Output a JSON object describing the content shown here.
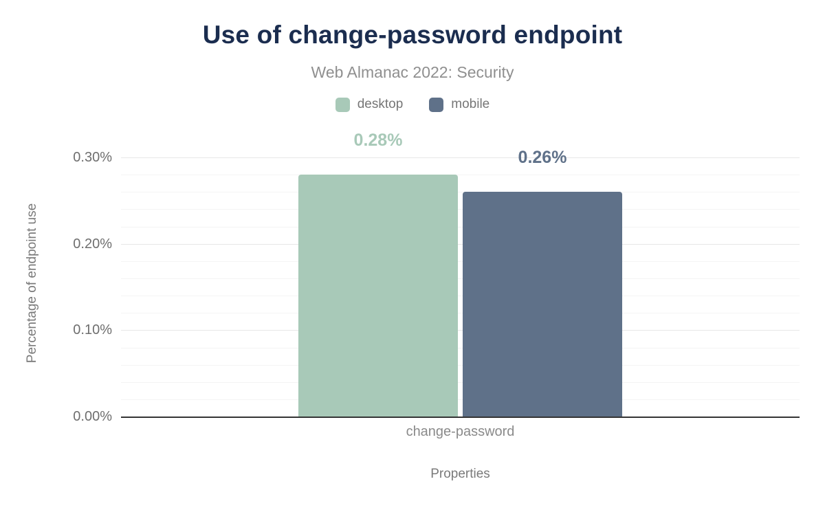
{
  "title": "Use of change-password endpoint",
  "subtitle": "Web Almanac 2022: Security",
  "legend": {
    "items": [
      {
        "label": "desktop",
        "color": "#a8c9b8"
      },
      {
        "label": "mobile",
        "color": "#5f7189"
      }
    ]
  },
  "chart_data": {
    "type": "bar",
    "title": "Use of change-password endpoint",
    "subtitle": "Web Almanac 2022: Security",
    "categories": [
      "change-password"
    ],
    "series": [
      {
        "name": "desktop",
        "color": "#a8c9b8",
        "values": [
          0.28
        ],
        "data_labels": [
          "0.28%"
        ]
      },
      {
        "name": "mobile",
        "color": "#5f7189",
        "values": [
          0.26
        ],
        "data_labels": [
          "0.26%"
        ]
      }
    ],
    "xlabel": "Properties",
    "ylabel": "Percentage of endpoint use",
    "ylim": [
      0,
      0.3
    ],
    "ytick_values": [
      0,
      0.1,
      0.2,
      0.3
    ],
    "ytick_labels": [
      "0.00%",
      "0.10%",
      "0.20%",
      "0.30%"
    ],
    "minor_grid_step": 0.02,
    "grid": true,
    "legend_position": "top",
    "unit": "%"
  },
  "colors": {
    "title_text": "#1b2d4f",
    "muted_text": "#8f8f8f",
    "axis_line": "#333333",
    "major_grid": "#e7e7e7",
    "minor_grid": "#f4f4f4",
    "desktop": "#a8c9b8",
    "mobile": "#5f7189"
  }
}
